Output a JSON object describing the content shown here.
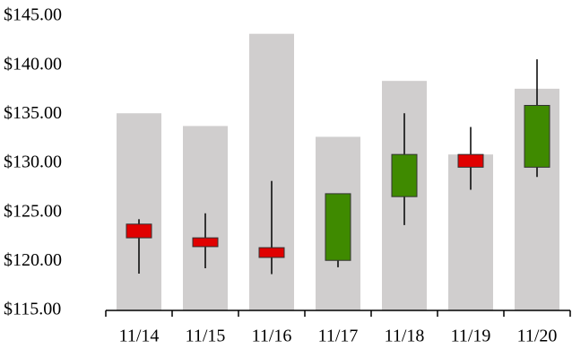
{
  "chart_data": {
    "type": "candlestick",
    "categories": [
      "11/14",
      "11/15",
      "11/16",
      "11/17",
      "11/18",
      "11/19",
      "11/20"
    ],
    "open": [
      123.8,
      122.4,
      121.4,
      120.1,
      126.6,
      130.9,
      129.6
    ],
    "high": [
      124.3,
      124.9,
      128.2,
      126.9,
      135.1,
      133.7,
      140.6
    ],
    "low": [
      118.75,
      119.3,
      118.7,
      119.4,
      123.7,
      127.3,
      128.6
    ],
    "close": [
      122.4,
      121.5,
      120.4,
      126.9,
      130.9,
      129.6,
      135.9
    ],
    "up_color": "#3f8a00",
    "down_color": "#e00000",
    "bars": {
      "values": [
        135.1,
        133.8,
        143.2,
        132.7,
        138.4,
        130.9,
        137.6
      ],
      "color": "#d0cece"
    },
    "ylim": [
      115,
      145
    ],
    "yticks": [
      {
        "value": 115,
        "label": "$115.00"
      },
      {
        "value": 120,
        "label": "$120.00"
      },
      {
        "value": 125,
        "label": "$125.00"
      },
      {
        "value": 130,
        "label": "$130.00"
      },
      {
        "value": 135,
        "label": "$135.00"
      },
      {
        "value": 140,
        "label": "$140.00"
      },
      {
        "value": 145,
        "label": "$145.00"
      }
    ],
    "grid": false
  }
}
